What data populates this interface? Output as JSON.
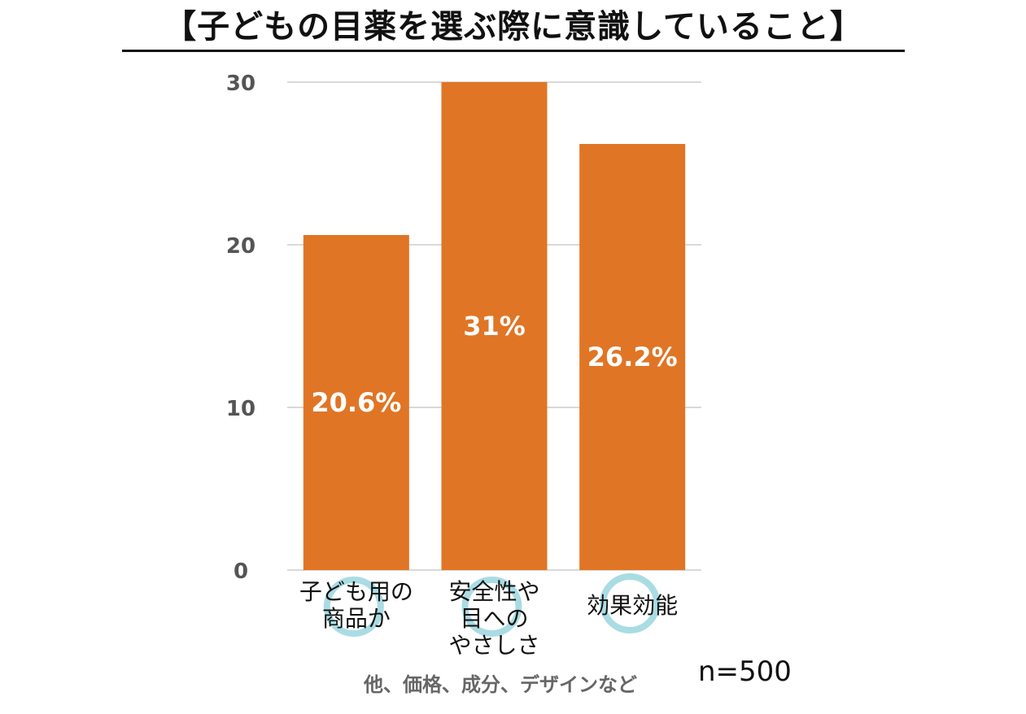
{
  "title": "【子どもの目薬を選ぶ際に意識していること】",
  "footnote": "他、価格、成分、デザインなど",
  "sample_size": "n=500",
  "colors": {
    "bar": "#E07525",
    "grid": "#D9D9D9",
    "highlight_circle": "#A9DCE3"
  },
  "chart_data": {
    "type": "bar",
    "title": "【子どもの目薬を選ぶ際に意識していること】",
    "categories": [
      [
        "子ども用の",
        "商品か"
      ],
      [
        "安全性や",
        "目への",
        "やさしさ"
      ],
      [
        "効果効能"
      ]
    ],
    "values": [
      20.6,
      31,
      26.2
    ],
    "data_labels": [
      "20.6%",
      "31%",
      "26.2%"
    ],
    "ylim": [
      0,
      30
    ],
    "yticks": [
      0,
      10,
      20,
      30
    ],
    "xlabel": "",
    "ylabel": "",
    "grid": true,
    "legend": "none"
  }
}
